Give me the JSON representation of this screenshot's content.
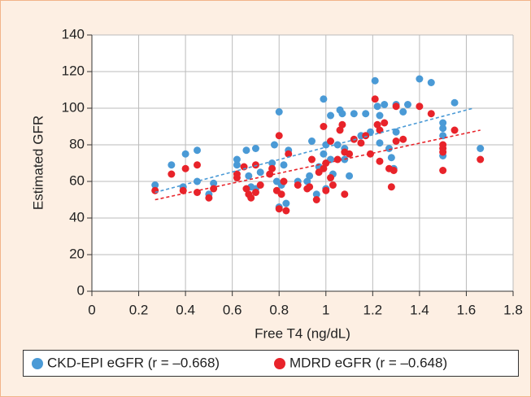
{
  "chart_data": {
    "type": "scatter",
    "xlabel": "Free T4 (ng/dL)",
    "ylabel": "Estimated GFR",
    "xlim": [
      0,
      1.8
    ],
    "ylim": [
      0,
      140
    ],
    "xticks": [
      0,
      0.2,
      0.4,
      0.6,
      0.8,
      1,
      1.2,
      1.4,
      1.6,
      1.8
    ],
    "yticks": [
      0,
      20,
      40,
      60,
      80,
      100,
      120,
      140
    ],
    "grid": true,
    "legend": "bottom",
    "series": [
      {
        "name": "CKD-EPI eGFR (r = –0.668)",
        "color": "#4a9ad6",
        "x": [
          0.27,
          0.34,
          0.39,
          0.4,
          0.45,
          0.45,
          0.5,
          0.52,
          0.62,
          0.62,
          0.66,
          0.67,
          0.68,
          0.7,
          0.7,
          0.72,
          0.77,
          0.78,
          0.8,
          0.79,
          0.81,
          0.82,
          0.83,
          0.84,
          0.8,
          0.88,
          0.92,
          0.93,
          0.94,
          0.96,
          0.97,
          0.99,
          0.99,
          1.0,
          1.0,
          1.02,
          1.02,
          1.03,
          1.05,
          1.06,
          1.07,
          1.08,
          1.08,
          1.1,
          1.12,
          1.15,
          1.17,
          1.19,
          1.21,
          1.22,
          1.23,
          1.23,
          1.25,
          1.27,
          1.28,
          1.29,
          1.3,
          1.3,
          1.33,
          1.35,
          1.4,
          1.45,
          1.5,
          1.5,
          1.5,
          1.5,
          1.55,
          1.66
        ],
        "values": [
          58,
          69,
          57,
          75,
          77,
          60,
          53,
          59,
          69,
          72,
          77,
          63,
          57,
          78,
          56,
          65,
          70,
          80,
          98,
          60,
          58,
          69,
          48,
          77,
          46,
          60,
          60,
          63,
          82,
          53,
          68,
          75,
          105,
          80,
          56,
          96,
          72,
          64,
          80,
          99,
          97,
          72,
          78,
          63,
          97,
          85,
          97,
          87,
          115,
          101,
          96,
          81,
          102,
          78,
          73,
          67,
          87,
          102,
          98,
          102,
          116,
          114,
          92,
          89,
          85,
          74,
          103,
          78
        ],
        "trend": {
          "x": [
            0.27,
            1.63
          ],
          "values": [
            54,
            100
          ]
        }
      },
      {
        "name": "MDRD eGFR (r = –0.648)",
        "color": "#e8232a",
        "x": [
          0.27,
          0.34,
          0.39,
          0.4,
          0.45,
          0.45,
          0.5,
          0.52,
          0.62,
          0.62,
          0.65,
          0.66,
          0.67,
          0.68,
          0.7,
          0.7,
          0.72,
          0.76,
          0.77,
          0.8,
          0.79,
          0.81,
          0.82,
          0.83,
          0.84,
          0.8,
          0.88,
          0.92,
          0.93,
          0.94,
          0.96,
          0.97,
          0.99,
          0.99,
          1.0,
          1.0,
          1.02,
          1.02,
          1.03,
          1.05,
          1.06,
          1.07,
          1.08,
          1.08,
          1.1,
          1.12,
          1.15,
          1.17,
          1.19,
          1.21,
          1.22,
          1.23,
          1.23,
          1.25,
          1.27,
          1.28,
          1.29,
          1.3,
          1.3,
          1.33,
          1.4,
          1.45,
          1.5,
          1.5,
          1.5,
          1.5,
          1.55,
          1.66
        ],
        "values": [
          55,
          64,
          55,
          67,
          69,
          54,
          51,
          56,
          62,
          64,
          68,
          56,
          53,
          51,
          69,
          54,
          58,
          64,
          67,
          85,
          55,
          53,
          60,
          44,
          75,
          45,
          58,
          56,
          57,
          72,
          50,
          65,
          67,
          90,
          70,
          55,
          82,
          62,
          58,
          72,
          88,
          91,
          53,
          76,
          75,
          83,
          81,
          85,
          75,
          105,
          91,
          88,
          71,
          92,
          67,
          57,
          66,
          82,
          101,
          83,
          101,
          97,
          80,
          78,
          76,
          66,
          88,
          72
        ],
        "trend": {
          "x": [
            0.27,
            1.66
          ],
          "values": [
            50,
            88
          ]
        }
      }
    ]
  }
}
